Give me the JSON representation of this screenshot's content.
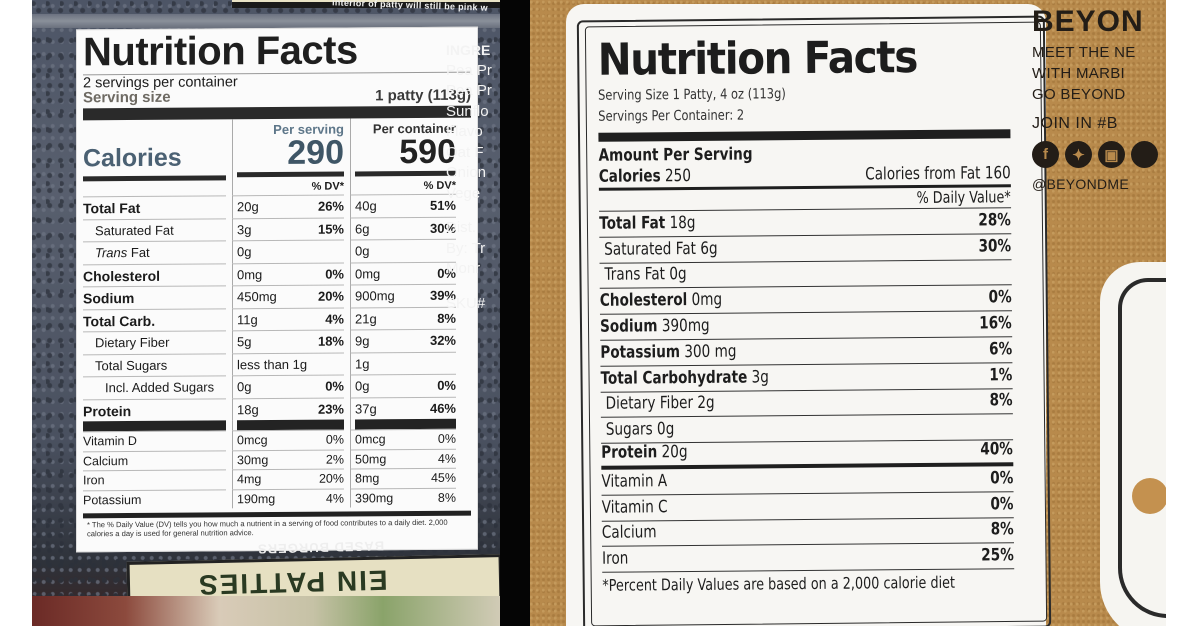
{
  "left_label": {
    "top_strip_text": "interior of patty will still be pink w",
    "title": "Nutrition Facts",
    "servings_per_container": "2 servings per container",
    "serving_size_label": "Serving size",
    "serving_size_value": "1 patty (113g)",
    "calories_label": "Calories",
    "per_serving_label": "Per serving",
    "per_container_label": "Per container",
    "calories_per_serving": "290",
    "calories_per_container": "590",
    "dv_header": "% DV*",
    "nutrients": [
      {
        "name": "Total Fat",
        "serv_amt": "20g",
        "serv_dv": "26%",
        "cont_amt": "40g",
        "cont_dv": "51%"
      },
      {
        "name": "Saturated Fat",
        "serv_amt": "3g",
        "serv_dv": "15%",
        "cont_amt": "6g",
        "cont_dv": "30%"
      },
      {
        "name_italic": "Trans",
        "name": " Fat",
        "serv_amt": "0g",
        "serv_dv": "",
        "cont_amt": "0g",
        "cont_dv": ""
      },
      {
        "name": "Cholesterol",
        "serv_amt": "0mg",
        "serv_dv": "0%",
        "cont_amt": "0mg",
        "cont_dv": "0%"
      },
      {
        "name": "Sodium",
        "serv_amt": "450mg",
        "serv_dv": "20%",
        "cont_amt": "900mg",
        "cont_dv": "39%"
      },
      {
        "name": "Total Carb.",
        "serv_amt": "11g",
        "serv_dv": "4%",
        "cont_amt": "21g",
        "cont_dv": "8%"
      },
      {
        "name": "Dietary Fiber",
        "serv_amt": "5g",
        "serv_dv": "18%",
        "cont_amt": "9g",
        "cont_dv": "32%"
      },
      {
        "name": "Total Sugars",
        "serv_amt": "less than 1g",
        "serv_dv": "",
        "cont_amt": "1g",
        "cont_dv": ""
      },
      {
        "name": "Incl. Added Sugars",
        "serv_amt": "0g",
        "serv_dv": "0%",
        "cont_amt": "0g",
        "cont_dv": "0%"
      },
      {
        "name": "Protein",
        "serv_amt": "18g",
        "serv_dv": "23%",
        "cont_amt": "37g",
        "cont_dv": "46%"
      }
    ],
    "vitamins": [
      {
        "name": "Vitamin D",
        "serv_amt": "0mcg",
        "serv_dv": "0%",
        "cont_amt": "0mcg",
        "cont_dv": "0%"
      },
      {
        "name": "Calcium",
        "serv_amt": "30mg",
        "serv_dv": "2%",
        "cont_amt": "50mg",
        "cont_dv": "4%"
      },
      {
        "name": "Iron",
        "serv_amt": "4mg",
        "serv_dv": "20%",
        "cont_amt": "8mg",
        "cont_dv": "45%"
      },
      {
        "name": "Potassium",
        "serv_amt": "190mg",
        "serv_dv": "4%",
        "cont_amt": "390mg",
        "cont_dv": "8%"
      }
    ],
    "footnote": "* The % Daily Value (DV) tells you how much a nutrient in a serving of food contributes to a daily diet. 2,000 calories a day is used for general nutrition advice.",
    "ingredients_partial": [
      "INGRE",
      "Pea Pr",
      "Pea Pr",
      "Sunflo",
      "Flavo",
      "Oat F",
      "Onion",
      "Vege"
    ],
    "distributor_partial": [
      "Dist.",
      "By: Tr",
      "Monr"
    ],
    "sku_partial": "SKU#",
    "package_band_small": "BASED BURGERS",
    "package_band_large": "EIN PATTIES"
  },
  "right_label": {
    "title": "Nutrition Facts",
    "serving_size": "Serving Size 1 Patty, 4 oz (113g)",
    "servings_per_container": "Servings Per Container: 2",
    "amount_per_serving": "Amount Per Serving",
    "calories_label": "Calories",
    "calories_value": "250",
    "calories_from_fat": "Calories from Fat 160",
    "dv_header": "% Daily Value*",
    "nutrients": [
      {
        "name": "Total Fat",
        "amt": "18g",
        "dv": "28%",
        "bold": true
      },
      {
        "name": "Saturated Fat",
        "amt": "6g",
        "dv": "30%",
        "bold": false
      },
      {
        "name": "Trans Fat",
        "amt": "0g",
        "dv": "",
        "bold": false
      },
      {
        "name": "Cholesterol",
        "amt": "0mg",
        "dv": "0%",
        "bold": true
      },
      {
        "name": "Sodium",
        "amt": "390mg",
        "dv": "16%",
        "bold": true
      },
      {
        "name": "Potassium",
        "amt": "300 mg",
        "dv": "6%",
        "bold": true
      },
      {
        "name": "Total Carbohydrate",
        "amt": "3g",
        "dv": "1%",
        "bold": true
      },
      {
        "name": "Dietary Fiber",
        "amt": "2g",
        "dv": "8%",
        "bold": false
      },
      {
        "name": "Sugars",
        "amt": "0g",
        "dv": "",
        "bold": false
      },
      {
        "name": "Protein",
        "amt": "20g",
        "dv": "40%",
        "bold": true
      }
    ],
    "vitamins": [
      {
        "name": "Vitamin A",
        "dv": "0%"
      },
      {
        "name": "Vitamin C",
        "dv": "0%"
      },
      {
        "name": "Calcium",
        "dv": "8%"
      },
      {
        "name": "Iron",
        "dv": "25%"
      }
    ],
    "footnote": "*Percent Daily Values are based on a 2,000 calorie diet"
  },
  "brand_panel": {
    "logo_partial": "BEYON",
    "tagline_partial": [
      "MEET THE NE",
      "WITH MARBI",
      "GO BEYOND"
    ],
    "join_partial": "JOIN IN  #B",
    "social_icons": [
      "facebook-icon",
      "twitter-icon",
      "instagram-icon"
    ],
    "handle_partial": "@BEYONDME"
  }
}
